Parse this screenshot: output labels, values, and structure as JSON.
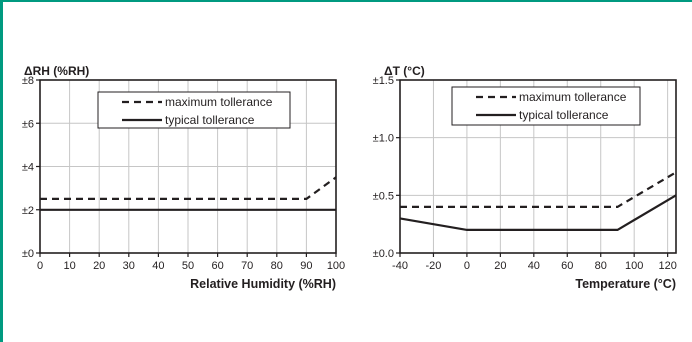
{
  "colors": {
    "frame": "#009a80",
    "grid": "#c6c6c6",
    "ink": "#231f20"
  },
  "chart_data": [
    {
      "type": "line",
      "title": "",
      "ylabel": "ΔRH (%RH)",
      "xlabel": "Relative Humidity (%RH)",
      "xlim": [
        0,
        100
      ],
      "ylim": [
        0,
        8
      ],
      "x_ticks": [
        0,
        10,
        20,
        30,
        40,
        50,
        60,
        70,
        80,
        90,
        100
      ],
      "x_tick_labels": [
        "0",
        "10",
        "20",
        "30",
        "40",
        "50",
        "60",
        "70",
        "80",
        "90",
        "100"
      ],
      "y_ticks": [
        0,
        2,
        4,
        6,
        8
      ],
      "y_tick_labels": [
        "±0",
        "±2",
        "±4",
        "±6",
        "±8"
      ],
      "grid": true,
      "legend_position": "top-center",
      "series": [
        {
          "name": "maximum tollerance",
          "style": "dashed",
          "points": [
            [
              0,
              2.5
            ],
            [
              90,
              2.5
            ],
            [
              100,
              3.5
            ]
          ]
        },
        {
          "name": "typical tollerance",
          "style": "solid",
          "points": [
            [
              0,
              2
            ],
            [
              100,
              2
            ]
          ]
        }
      ]
    },
    {
      "type": "line",
      "title": "",
      "ylabel": "ΔT (°C)",
      "xlabel": "Temperature (°C)",
      "xlim": [
        -40,
        125
      ],
      "ylim": [
        0,
        1.5
      ],
      "x_ticks": [
        -40,
        -20,
        0,
        20,
        40,
        60,
        80,
        100,
        120
      ],
      "x_tick_labels": [
        "-40",
        "-20",
        "0",
        "20",
        "40",
        "60",
        "80",
        "100",
        "120"
      ],
      "y_ticks": [
        0,
        0.5,
        1.0,
        1.5
      ],
      "y_tick_labels": [
        "±0.0",
        "±0.5",
        "±1.0",
        "±1.5"
      ],
      "grid": true,
      "legend_position": "top-center",
      "series": [
        {
          "name": "maximum tollerance",
          "style": "dashed",
          "points": [
            [
              -40,
              0.4
            ],
            [
              90,
              0.4
            ],
            [
              125,
              0.7
            ]
          ]
        },
        {
          "name": "typical tollerance",
          "style": "solid",
          "points": [
            [
              -40,
              0.3
            ],
            [
              0,
              0.2
            ],
            [
              90,
              0.2
            ],
            [
              125,
              0.5
            ]
          ]
        }
      ]
    }
  ]
}
